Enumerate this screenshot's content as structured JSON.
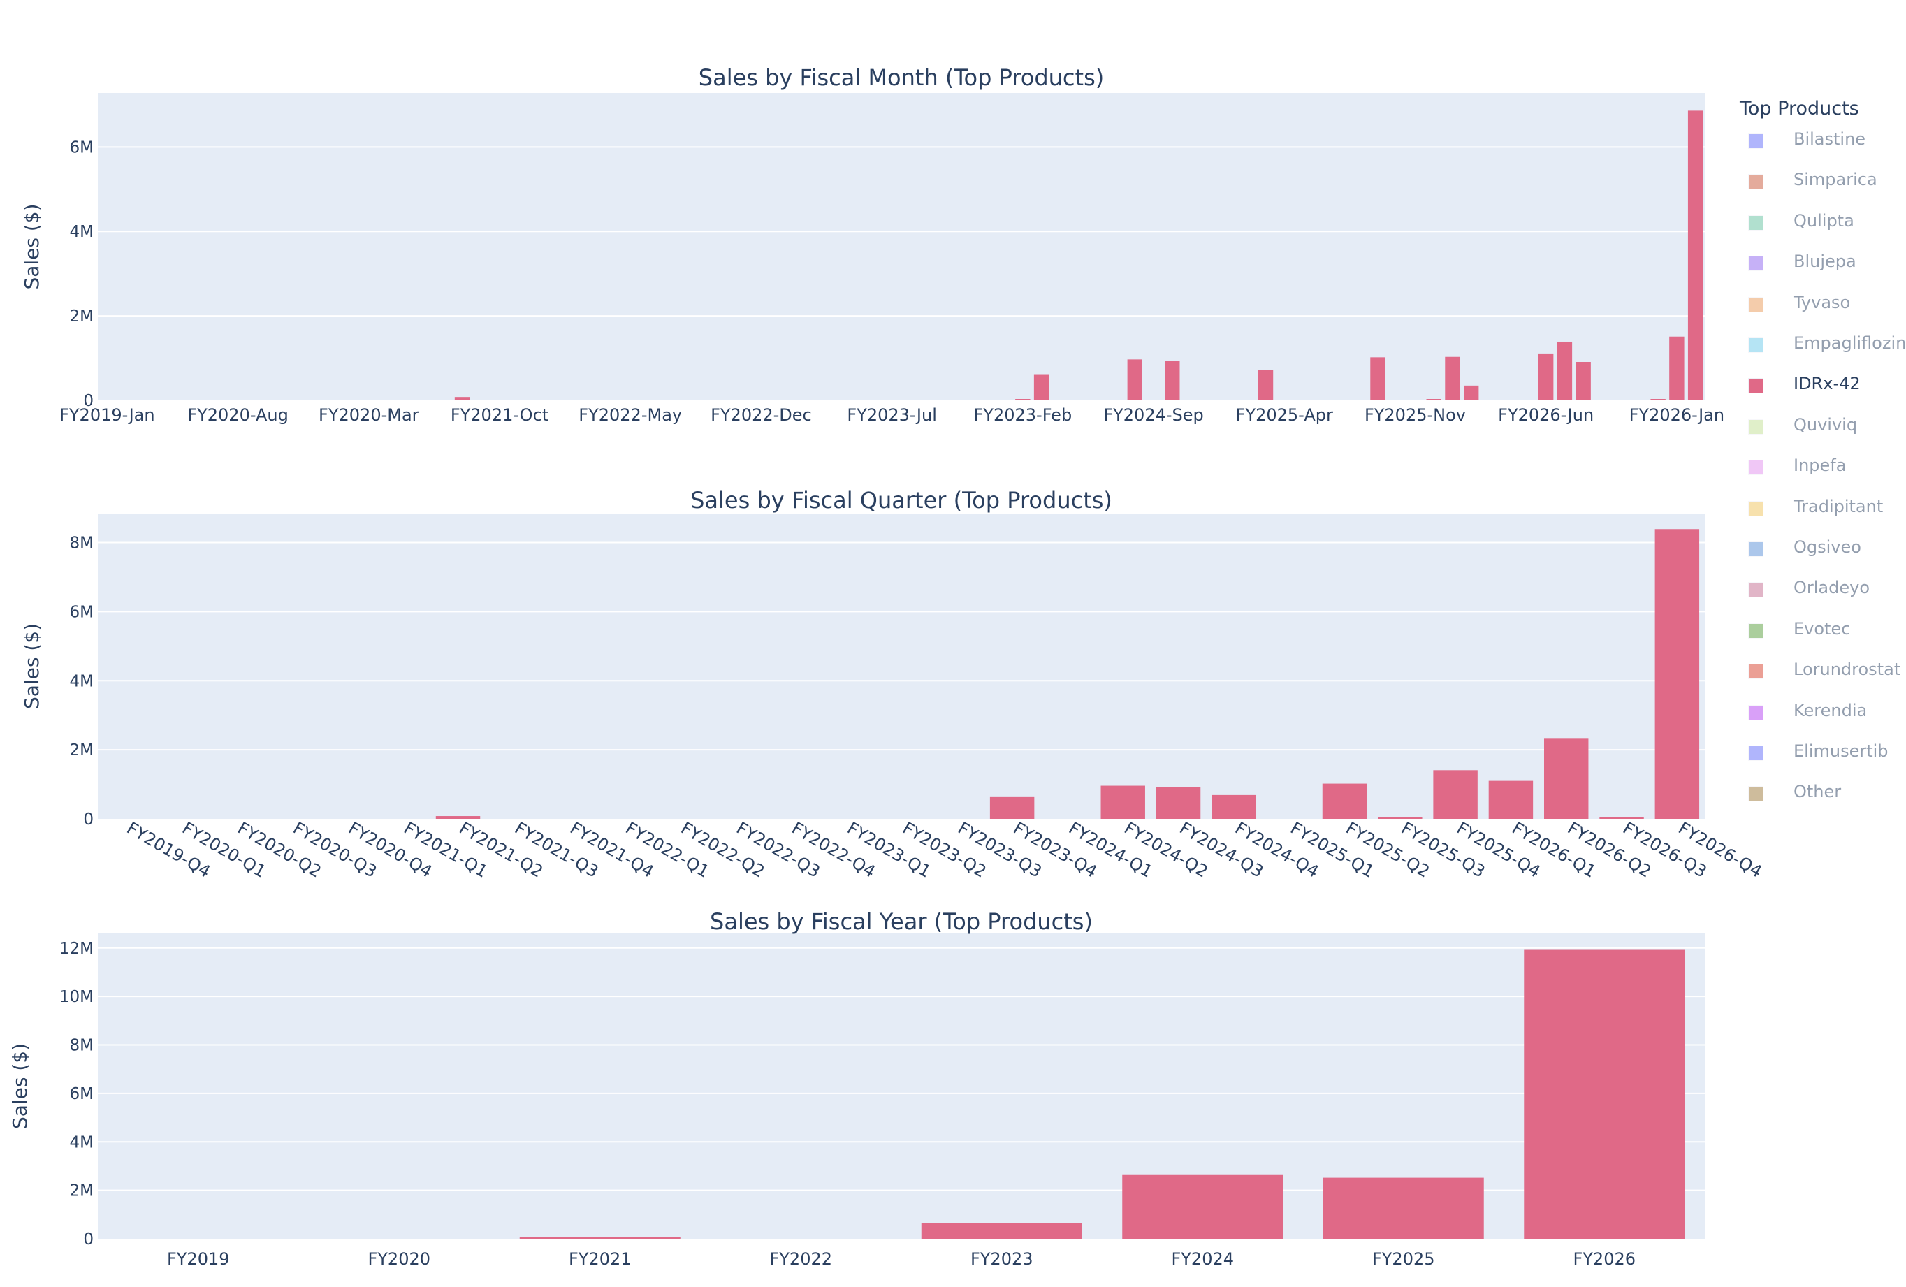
{
  "legend": {
    "title": "Top Products",
    "items": [
      {
        "label": "Bilastine",
        "color": "#636efa",
        "visible": false
      },
      {
        "label": "Simparica",
        "color": "#cb5a3c",
        "visible": false
      },
      {
        "label": "Qulipta",
        "color": "#66c2a0",
        "visible": false
      },
      {
        "label": "Blujepa",
        "color": "#8f66f0",
        "visible": false
      },
      {
        "label": "Tyvaso",
        "color": "#eb9a5a",
        "visible": false
      },
      {
        "label": "Empagliflozin",
        "color": "#6dcbeb",
        "visible": false
      },
      {
        "label": "IDRx-42",
        "color": "#e06987",
        "visible": true
      },
      {
        "label": "Quviviq",
        "color": "#c2e094",
        "visible": false
      },
      {
        "label": "Inpefa",
        "color": "#e391ee",
        "visible": false
      },
      {
        "label": "Tradipitant",
        "color": "#f0c45e",
        "visible": false
      },
      {
        "label": "Ogsiveo",
        "color": "#5c91d9",
        "visible": false
      },
      {
        "label": "Orladeyo",
        "color": "#c46e90",
        "visible": false
      },
      {
        "label": "Evotec",
        "color": "#5a9e3e",
        "visible": false
      },
      {
        "label": "Lorundrostat",
        "color": "#d9412e",
        "visible": false
      },
      {
        "label": "Kerendia",
        "color": "#b544f2",
        "visible": false
      },
      {
        "label": "Elimusertib",
        "color": "#636efa",
        "visible": false
      },
      {
        "label": "Other",
        "color": "#9e7c3c",
        "visible": false
      }
    ]
  },
  "colors": {
    "plot_bg": "#e5ecf6",
    "grid": "#ffffff",
    "text": "#2a3f5f",
    "bar": "#e06987"
  },
  "chart_data": [
    {
      "type": "bar",
      "title": "Sales by Fiscal Month (Top Products)",
      "xlabel": "",
      "ylabel": "Sales ($)",
      "ylim": [
        0,
        7280000
      ],
      "yticks": [
        0,
        2000000,
        4000000,
        6000000
      ],
      "ytick_labels": [
        "0",
        "2M",
        "4M",
        "6M"
      ],
      "grid": true,
      "legend_position": "right",
      "series_name": "IDRx-42",
      "category_count": 86,
      "xtick_every": 7,
      "xtick_labels": [
        "FY2019-Jan",
        "FY2020-Aug",
        "FY2020-Mar",
        "FY2021-Oct",
        "FY2022-May",
        "FY2022-Dec",
        "FY2023-Jul",
        "FY2023-Feb",
        "FY2024-Sep",
        "FY2025-Apr",
        "FY2025-Nov",
        "FY2026-Jun",
        "FY2026-Jan"
      ],
      "nonzero_points": [
        {
          "index": 19,
          "value": 80000
        },
        {
          "index": 49,
          "value": 30000
        },
        {
          "index": 50,
          "value": 620000
        },
        {
          "index": 55,
          "value": 970000
        },
        {
          "index": 57,
          "value": 930000
        },
        {
          "index": 62,
          "value": 720000
        },
        {
          "index": 68,
          "value": 1020000
        },
        {
          "index": 71,
          "value": 30000
        },
        {
          "index": 72,
          "value": 1030000
        },
        {
          "index": 73,
          "value": 350000
        },
        {
          "index": 77,
          "value": 1110000
        },
        {
          "index": 78,
          "value": 1390000
        },
        {
          "index": 79,
          "value": 910000
        },
        {
          "index": 83,
          "value": 30000
        },
        {
          "index": 84,
          "value": 1510000
        },
        {
          "index": 85,
          "value": 6860000
        }
      ]
    },
    {
      "type": "bar",
      "title": "Sales by Fiscal Quarter (Top Products)",
      "xlabel": "",
      "ylabel": "Sales ($)",
      "ylim": [
        0,
        8840000
      ],
      "yticks": [
        0,
        2000000,
        4000000,
        6000000,
        8000000
      ],
      "ytick_labels": [
        "0",
        "2M",
        "4M",
        "6M",
        "8M"
      ],
      "grid": true,
      "series_name": "IDRx-42",
      "categories": [
        "FY2019-Q4",
        "FY2020-Q1",
        "FY2020-Q2",
        "FY2020-Q3",
        "FY2020-Q4",
        "FY2021-Q1",
        "FY2021-Q2",
        "FY2021-Q3",
        "FY2021-Q4",
        "FY2022-Q1",
        "FY2022-Q2",
        "FY2022-Q3",
        "FY2022-Q4",
        "FY2023-Q1",
        "FY2023-Q2",
        "FY2023-Q3",
        "FY2023-Q4",
        "FY2024-Q1",
        "FY2024-Q2",
        "FY2024-Q3",
        "FY2024-Q4",
        "FY2025-Q1",
        "FY2025-Q2",
        "FY2025-Q3",
        "FY2025-Q4",
        "FY2026-Q1",
        "FY2026-Q2",
        "FY2026-Q3",
        "FY2026-Q4"
      ],
      "values": [
        0,
        0,
        0,
        0,
        0,
        0,
        80000,
        0,
        0,
        0,
        0,
        0,
        0,
        0,
        0,
        0,
        650000,
        0,
        960000,
        920000,
        690000,
        0,
        1020000,
        20000,
        1410000,
        1100000,
        2340000,
        20000,
        8390000
      ]
    },
    {
      "type": "bar",
      "title": "Sales by Fiscal Year (Top Products)",
      "xlabel": "",
      "ylabel": "Sales ($)",
      "ylim": [
        0,
        12600000
      ],
      "yticks": [
        0,
        2000000,
        4000000,
        6000000,
        8000000,
        10000000,
        12000000
      ],
      "ytick_labels": [
        "0",
        "2M",
        "4M",
        "6M",
        "8M",
        "10M",
        "12M"
      ],
      "grid": true,
      "series_name": "IDRx-42",
      "categories": [
        "FY2019",
        "FY2020",
        "FY2021",
        "FY2022",
        "FY2023",
        "FY2024",
        "FY2025",
        "FY2026"
      ],
      "values": [
        0,
        0,
        80000,
        0,
        640000,
        2660000,
        2520000,
        11950000
      ]
    }
  ]
}
